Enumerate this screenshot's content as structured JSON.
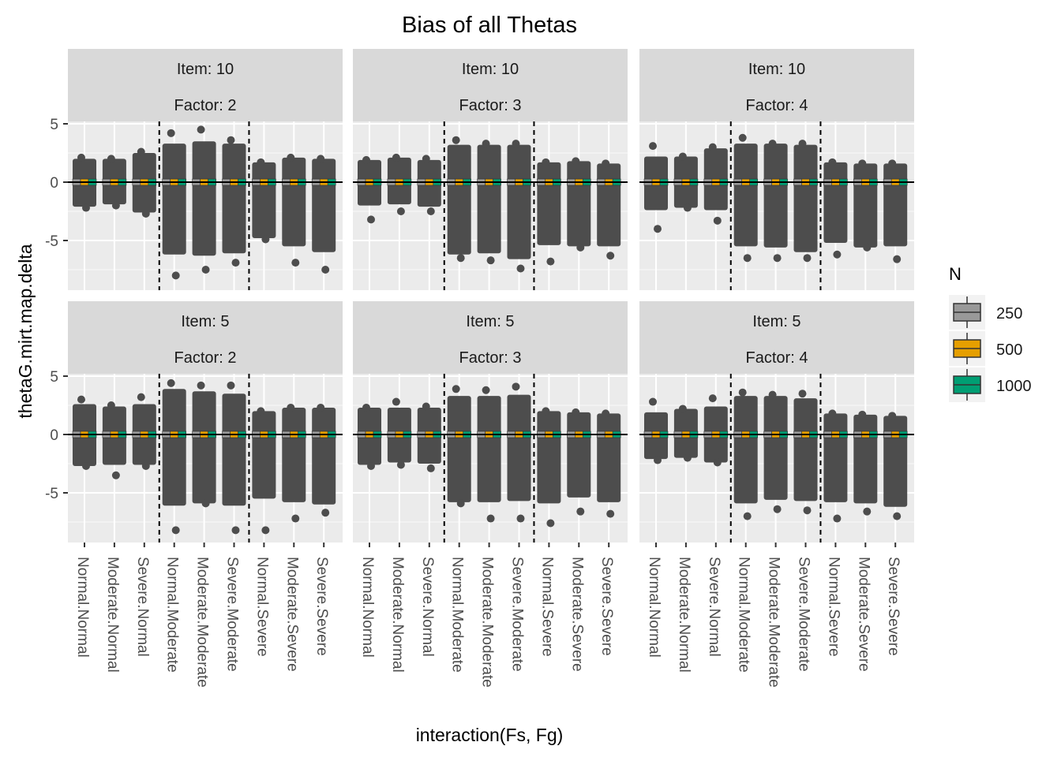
{
  "chart_data": {
    "type": "boxplot",
    "title": "Bias of all Thetas",
    "xlabel": "interaction(Fs, Fg)",
    "ylabel": "thetaG.mirt.map.delta",
    "ylim": [
      -9,
      10
    ],
    "yticks": [
      -5,
      0,
      5
    ],
    "categories": [
      "Normal.Normal",
      "Moderate.Normal",
      "Severe.Normal",
      "Normal.Moderate",
      "Moderate.Moderate",
      "Severe.Moderate",
      "Normal.Severe",
      "Moderate.Severe",
      "Severe.Severe"
    ],
    "reference_lines": {
      "horizontal_y": 0,
      "vertical_dashed_between": [
        3,
        6
      ]
    },
    "legend": {
      "title": "N",
      "position": "right",
      "entries": [
        {
          "label": "250",
          "color": "#999999"
        },
        {
          "label": "500",
          "color": "#E69F00"
        },
        {
          "label": "1000",
          "color": "#009E73"
        }
      ]
    },
    "grid": true,
    "panels": [
      {
        "strip": [
          "Item: 10",
          "Factor: 2"
        ],
        "lower": [
          -2.1,
          -1.9,
          -2.6,
          -6.2,
          -6.3,
          -6.1,
          -4.8,
          -5.5,
          -6.0
        ],
        "upper": [
          2.0,
          2.0,
          2.5,
          3.3,
          3.5,
          3.3,
          1.7,
          2.1,
          2.0
        ],
        "outliers_low": [
          -2.2,
          -2.0,
          -2.7,
          -8.0,
          -7.5,
          -6.9,
          -4.9,
          -6.9,
          -7.5
        ],
        "outliers_high": [
          2.1,
          2.0,
          2.6,
          4.2,
          4.5,
          3.6,
          1.7,
          2.1,
          2.0
        ]
      },
      {
        "strip": [
          "Item: 10",
          "Factor: 3"
        ],
        "lower": [
          -2.0,
          -1.9,
          -2.1,
          -6.2,
          -6.1,
          -6.6,
          -5.4,
          -5.5,
          -5.5
        ],
        "upper": [
          1.9,
          2.1,
          1.9,
          3.2,
          3.2,
          3.2,
          1.7,
          1.8,
          1.6
        ],
        "outliers_low": [
          -3.2,
          -2.5,
          -2.5,
          -6.5,
          -6.7,
          -7.4,
          -6.8,
          -5.6,
          -6.3
        ],
        "outliers_high": [
          1.9,
          2.1,
          2.0,
          3.6,
          3.3,
          3.3,
          1.7,
          1.8,
          1.6
        ],
        "has_n_colors": false
      },
      {
        "strip": [
          "Item: 10",
          "Factor: 4"
        ],
        "lower": [
          -2.4,
          -2.2,
          -2.4,
          -5.5,
          -5.6,
          -6.0,
          -5.2,
          -5.6,
          -5.5
        ],
        "upper": [
          2.2,
          2.2,
          2.9,
          3.3,
          3.3,
          3.2,
          1.7,
          1.6,
          1.6
        ],
        "outliers_low": [
          -4.0,
          -2.2,
          -3.3,
          -6.5,
          -6.5,
          -6.5,
          -6.2,
          -5.6,
          -6.6
        ],
        "outliers_high": [
          3.1,
          2.2,
          3.0,
          3.8,
          3.3,
          3.3,
          1.7,
          1.6,
          1.6
        ],
        "has_n_colors": false
      },
      {
        "strip": [
          "Item: 5",
          "Factor: 2"
        ],
        "lower": [
          -2.7,
          -2.6,
          -2.6,
          -6.1,
          -5.9,
          -6.1,
          -5.5,
          -5.8,
          -6.0
        ],
        "upper": [
          2.6,
          2.4,
          2.6,
          3.9,
          3.7,
          3.5,
          2.0,
          2.3,
          2.3
        ],
        "outliers_low": [
          -2.7,
          -3.5,
          -2.7,
          -8.2,
          -5.9,
          -8.2,
          -8.2,
          -7.2,
          -6.7
        ],
        "outliers_high": [
          3.0,
          2.5,
          3.2,
          4.4,
          4.2,
          4.2,
          2.0,
          2.3,
          2.3
        ]
      },
      {
        "strip": [
          "Item: 5",
          "Factor: 3"
        ],
        "lower": [
          -2.6,
          -2.4,
          -2.5,
          -5.8,
          -5.8,
          -5.7,
          -5.9,
          -5.4,
          -5.8
        ],
        "upper": [
          2.3,
          2.3,
          2.3,
          3.3,
          3.3,
          3.4,
          2.0,
          1.9,
          1.8
        ],
        "outliers_low": [
          -2.7,
          -2.6,
          -2.9,
          -5.9,
          -7.2,
          -7.2,
          -7.6,
          -6.6,
          -6.8
        ],
        "outliers_high": [
          2.3,
          2.8,
          2.4,
          3.9,
          3.8,
          4.1,
          2.0,
          1.9,
          1.8
        ]
      },
      {
        "strip": [
          "Item: 5",
          "Factor: 4"
        ],
        "lower": [
          -2.1,
          -2.0,
          -2.4,
          -5.9,
          -5.6,
          -5.7,
          -5.8,
          -5.9,
          -6.2
        ],
        "upper": [
          1.9,
          2.2,
          2.4,
          3.3,
          3.3,
          3.1,
          1.8,
          1.7,
          1.6
        ],
        "outliers_low": [
          -2.2,
          -2.0,
          -2.4,
          -7.0,
          -6.4,
          -6.5,
          -7.2,
          -6.6,
          -7.0
        ],
        "outliers_high": [
          2.8,
          2.2,
          3.1,
          3.6,
          3.4,
          3.5,
          1.8,
          1.7,
          1.6
        ]
      }
    ]
  }
}
